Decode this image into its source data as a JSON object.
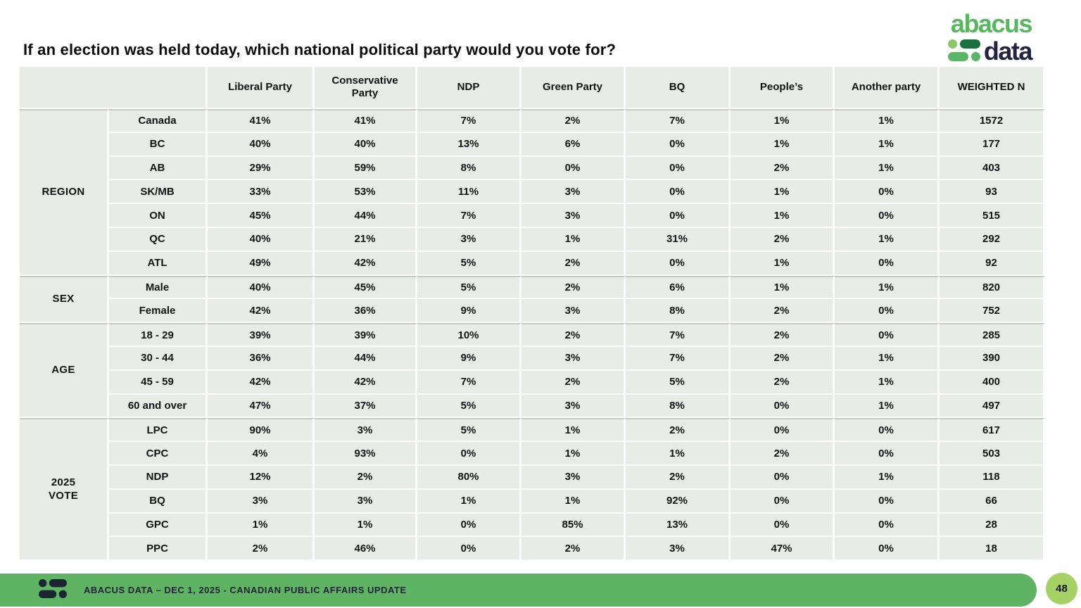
{
  "title": "If an election was held today, which national political party would you vote for?",
  "logo": {
    "line1": "abacus",
    "line2": "data"
  },
  "table": {
    "column_headers": [
      "Liberal Party",
      "Conservative Party",
      "NDP",
      "Green Party",
      "BQ",
      "People’s",
      "Another party",
      "WEIGHTED N"
    ],
    "groups": [
      {
        "label_lines": [
          "REGION"
        ],
        "rows": [
          {
            "category": "Canada",
            "values": [
              "41%",
              "41%",
              "7%",
              "2%",
              "7%",
              "1%",
              "1%",
              "1572"
            ]
          },
          {
            "category": "BC",
            "values": [
              "40%",
              "40%",
              "13%",
              "6%",
              "0%",
              "1%",
              "1%",
              "177"
            ]
          },
          {
            "category": "AB",
            "values": [
              "29%",
              "59%",
              "8%",
              "0%",
              "0%",
              "2%",
              "1%",
              "403"
            ]
          },
          {
            "category": "SK/MB",
            "values": [
              "33%",
              "53%",
              "11%",
              "3%",
              "0%",
              "1%",
              "0%",
              "93"
            ]
          },
          {
            "category": "ON",
            "values": [
              "45%",
              "44%",
              "7%",
              "3%",
              "0%",
              "1%",
              "0%",
              "515"
            ]
          },
          {
            "category": "QC",
            "values": [
              "40%",
              "21%",
              "3%",
              "1%",
              "31%",
              "2%",
              "1%",
              "292"
            ]
          },
          {
            "category": "ATL",
            "values": [
              "49%",
              "42%",
              "5%",
              "2%",
              "0%",
              "1%",
              "0%",
              "92"
            ]
          }
        ]
      },
      {
        "label_lines": [
          "SEX"
        ],
        "rows": [
          {
            "category": "Male",
            "values": [
              "40%",
              "45%",
              "5%",
              "2%",
              "6%",
              "1%",
              "1%",
              "820"
            ]
          },
          {
            "category": "Female",
            "values": [
              "42%",
              "36%",
              "9%",
              "3%",
              "8%",
              "2%",
              "0%",
              "752"
            ]
          }
        ]
      },
      {
        "label_lines": [
          "AGE"
        ],
        "rows": [
          {
            "category": "18 - 29",
            "values": [
              "39%",
              "39%",
              "10%",
              "2%",
              "7%",
              "2%",
              "0%",
              "285"
            ]
          },
          {
            "category": "30 - 44",
            "values": [
              "36%",
              "44%",
              "9%",
              "3%",
              "7%",
              "2%",
              "1%",
              "390"
            ]
          },
          {
            "category": "45 - 59",
            "values": [
              "42%",
              "42%",
              "7%",
              "2%",
              "5%",
              "2%",
              "1%",
              "400"
            ]
          },
          {
            "category": "60 and over",
            "values": [
              "47%",
              "37%",
              "5%",
              "3%",
              "8%",
              "0%",
              "1%",
              "497"
            ]
          }
        ]
      },
      {
        "label_lines": [
          "2025",
          "VOTE"
        ],
        "rows": [
          {
            "category": "LPC",
            "values": [
              "90%",
              "3%",
              "5%",
              "1%",
              "2%",
              "0%",
              "0%",
              "617"
            ]
          },
          {
            "category": "CPC",
            "values": [
              "4%",
              "93%",
              "0%",
              "1%",
              "1%",
              "2%",
              "0%",
              "503"
            ]
          },
          {
            "category": "NDP",
            "values": [
              "12%",
              "2%",
              "80%",
              "3%",
              "2%",
              "0%",
              "1%",
              "118"
            ]
          },
          {
            "category": "BQ",
            "values": [
              "3%",
              "3%",
              "1%",
              "1%",
              "92%",
              "0%",
              "0%",
              "66"
            ]
          },
          {
            "category": "GPC",
            "values": [
              "1%",
              "1%",
              "0%",
              "85%",
              "13%",
              "0%",
              "0%",
              "28"
            ]
          },
          {
            "category": "PPC",
            "values": [
              "2%",
              "46%",
              "0%",
              "2%",
              "3%",
              "47%",
              "0%",
              "18"
            ]
          }
        ]
      }
    ]
  },
  "footer": {
    "text": "ABACUS DATA – DEC 1, 2025 - CANADIAN PUBLIC AFFAIRS UPDATE",
    "page_number": "48"
  },
  "colors": {
    "cell_bg": "#e9ebe6",
    "group_line": "#c6cac3",
    "footer_green": "#5fb464",
    "badge_green": "#a5d165",
    "logo_green": "#57b75f",
    "logo_navy": "#232341",
    "mark_dark_green": "#1a7040",
    "mark_light_green": "#8cc763",
    "mark_mid_green": "#5cb567"
  }
}
